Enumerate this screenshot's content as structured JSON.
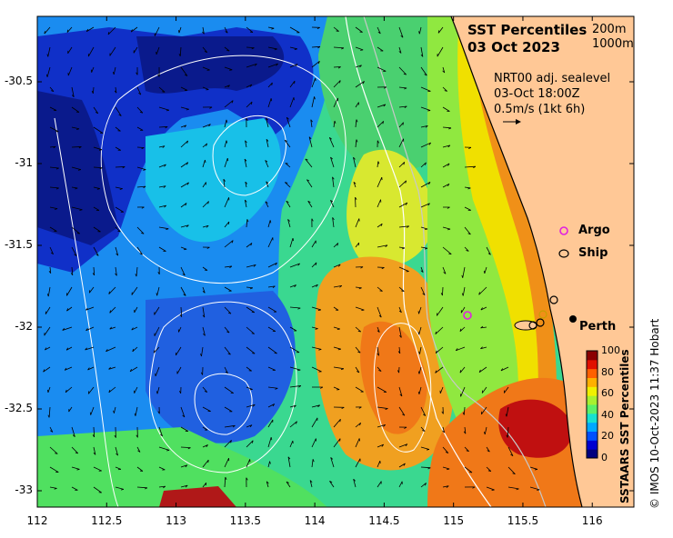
{
  "title": {
    "line1": "SST Percentiles",
    "line2": "03 Oct 2023"
  },
  "depth_contours": {
    "a": "200m",
    "b": "1000m"
  },
  "current_info": {
    "line1": "NRT00 adj. sealevel",
    "line2": "03-Oct 18:00Z",
    "line3": "0.5m/s (1kt 6h)"
  },
  "legend": {
    "argo": "Argo",
    "ship": "Ship",
    "argo_color": "#e020e0"
  },
  "place_label": "Perth",
  "axes": {
    "x_ticks": [
      "112",
      "112.5",
      "113",
      "113.5",
      "114",
      "114.5",
      "115",
      "115.5",
      "116"
    ],
    "y_ticks": [
      "-30.5",
      "-31",
      "-31.5",
      "-32",
      "-32.5",
      "-33"
    ],
    "lon_range": [
      112,
      116.3
    ],
    "lat_range": [
      -33.1,
      -30.1
    ]
  },
  "colorbar": {
    "label": "SSTAARS SST Percentiles",
    "ticks": [
      "100",
      "80",
      "60",
      "40",
      "20",
      "0"
    ],
    "colors": [
      "#00007f",
      "#0000d0",
      "#0050ff",
      "#00a8ff",
      "#18e0d0",
      "#5cf068",
      "#a8f030",
      "#f0f000",
      "#ffb000",
      "#ff6000",
      "#e01000",
      "#8b0000"
    ]
  },
  "credit": "© IMOS 10-Oct-2023 11:37 Hobart",
  "land_color": "#ffc896",
  "map_layers": {
    "warm_patch": "SST warm patch",
    "cold_gyre": "SST cold gyre"
  }
}
